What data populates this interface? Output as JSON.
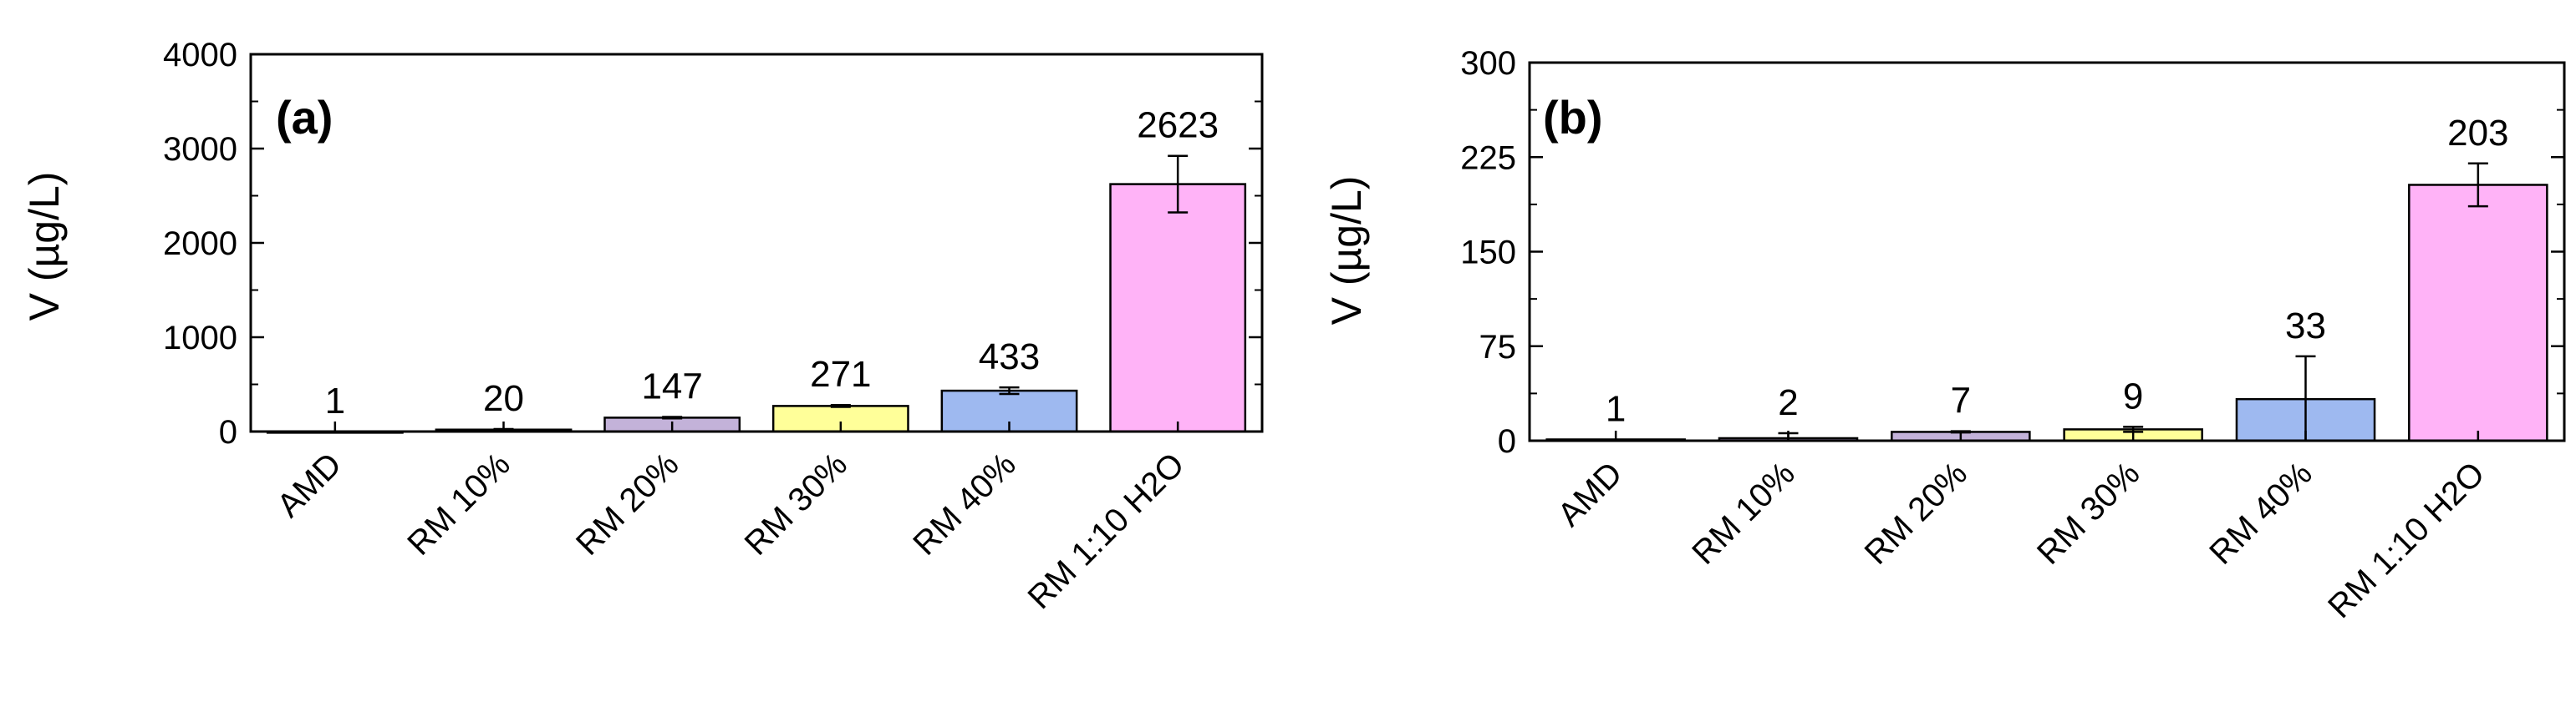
{
  "chart_data": [
    {
      "type": "bar",
      "panel_label": "(a)",
      "ylabel": "V (µg/L)",
      "xlabel": "",
      "ylim": [
        0,
        4000
      ],
      "yticks": [
        0,
        1000,
        2000,
        3000,
        4000
      ],
      "categories": [
        "AMD",
        "RM 10%",
        "RM 20%",
        "RM 30%",
        "RM 40%",
        "RM 1:10 H2O"
      ],
      "values": [
        1,
        20,
        147,
        271,
        433,
        2623
      ],
      "errors": [
        0,
        6,
        8,
        10,
        35,
        300
      ],
      "value_labels": [
        "1",
        "20",
        "147",
        "271",
        "433",
        "2623"
      ],
      "colors": [
        "#e6e6e6",
        "#c5a9e0",
        "#c3b2d9",
        "#ffff99",
        "#9eb9f0",
        "#ffb3f7"
      ],
      "grid": false
    },
    {
      "type": "bar",
      "panel_label": "(b)",
      "ylabel": "V (µg/L)",
      "xlabel": "",
      "ylim": [
        0,
        300
      ],
      "yticks": [
        0,
        75,
        150,
        225,
        300
      ],
      "categories": [
        "AMD",
        "RM 10%",
        "RM 20%",
        "RM 30%",
        "RM 40%",
        "RM 1:10 H2O"
      ],
      "values": [
        1,
        2,
        7,
        9,
        33,
        203
      ],
      "errors": [
        0,
        4,
        0.5,
        2,
        34,
        17
      ],
      "value_labels": [
        "1",
        "2",
        "7",
        "9",
        "33",
        "203"
      ],
      "colors": [
        "#e6e6e6",
        "#c5a9e0",
        "#c3b2d9",
        "#ffff99",
        "#9eb9f0",
        "#ffb3f7"
      ],
      "grid": false
    }
  ]
}
